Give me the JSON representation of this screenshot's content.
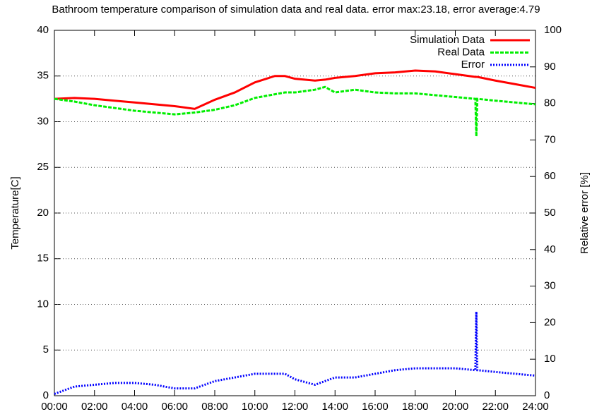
{
  "chart_data": {
    "type": "line",
    "title": "Bathroom temperature comparison of simulation data and real data. error max:23.18, error average:4.79",
    "y_label": "Temperature[C]",
    "y2_label": "Relative error [%]",
    "x": [
      0,
      1,
      2,
      3,
      4,
      5,
      6,
      7,
      8,
      9,
      10,
      11,
      11.5,
      12,
      13,
      13.5,
      14,
      15,
      16,
      17,
      18,
      19,
      20,
      21,
      21.05,
      21.1,
      22,
      23,
      24
    ],
    "xlim": [
      0,
      24
    ],
    "xticks": [
      {
        "value": 0,
        "label": "00:00"
      },
      {
        "value": 2,
        "label": "02:00"
      },
      {
        "value": 4,
        "label": "04:00"
      },
      {
        "value": 6,
        "label": "06:00"
      },
      {
        "value": 8,
        "label": "08:00"
      },
      {
        "value": 10,
        "label": "10:00"
      },
      {
        "value": 12,
        "label": "12:00"
      },
      {
        "value": 14,
        "label": "14:00"
      },
      {
        "value": 16,
        "label": "16:00"
      },
      {
        "value": 18,
        "label": "18:00"
      },
      {
        "value": 20,
        "label": "20:00"
      },
      {
        "value": 22,
        "label": "22:00"
      },
      {
        "value": 24,
        "label": "24:00"
      }
    ],
    "ylim": [
      0,
      40
    ],
    "yticks": [
      0,
      5,
      10,
      15,
      20,
      25,
      30,
      35,
      40
    ],
    "y2lim": [
      0,
      100
    ],
    "y2ticks": [
      0,
      10,
      20,
      30,
      40,
      50,
      60,
      70,
      80,
      90,
      100
    ],
    "grid": true,
    "legend": "top-right",
    "series": [
      {
        "name": "Simulation Data",
        "color": "#ff0000",
        "dash": "solid",
        "values": [
          32.5,
          32.6,
          32.5,
          32.3,
          32.1,
          31.9,
          31.7,
          31.4,
          32.4,
          33.2,
          34.3,
          35.0,
          35.0,
          34.7,
          34.5,
          34.6,
          34.8,
          35.0,
          35.3,
          35.4,
          35.6,
          35.5,
          35.2,
          34.9,
          34.9,
          34.9,
          34.5,
          34.1,
          33.7
        ]
      },
      {
        "name": "Real Data",
        "color": "#00ee00",
        "dash": "dashed",
        "values": [
          32.5,
          32.2,
          31.8,
          31.5,
          31.2,
          31.0,
          30.8,
          31.0,
          31.3,
          31.8,
          32.6,
          33.0,
          33.2,
          33.2,
          33.5,
          33.8,
          33.2,
          33.5,
          33.2,
          33.1,
          33.1,
          32.9,
          32.7,
          32.5,
          28.4,
          32.5,
          32.3,
          32.1,
          31.9
        ]
      },
      {
        "name": "Error",
        "color": "#0000ff",
        "dash": "dotted",
        "axis": "y2",
        "values": [
          0.5,
          2.5,
          3,
          3.5,
          3.5,
          3,
          2,
          2,
          4,
          5,
          6,
          6,
          6,
          4.5,
          3,
          4,
          5,
          5,
          6,
          7,
          7.5,
          7.5,
          7.5,
          7,
          23,
          7,
          6.5,
          6,
          5.5
        ]
      }
    ]
  }
}
